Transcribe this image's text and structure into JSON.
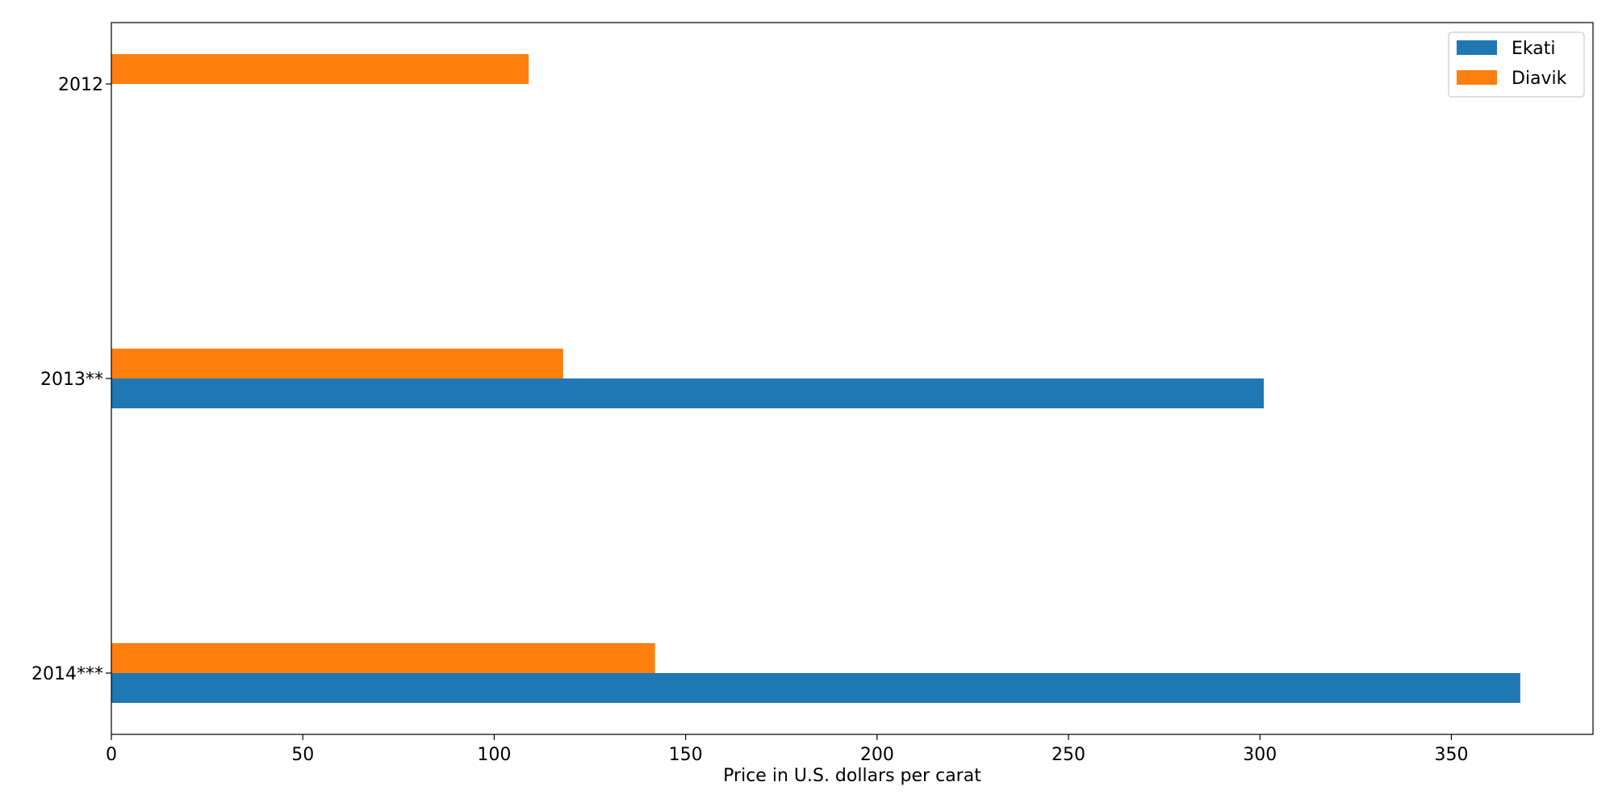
{
  "chart_data": {
    "type": "bar",
    "orientation": "horizontal",
    "title": "",
    "xlabel": "Price in U.S. dollars per carat",
    "ylabel": "",
    "categories": [
      "2012",
      "2013**",
      "2014***"
    ],
    "series": [
      {
        "name": "Ekati",
        "color": "#1f77b4",
        "values": [
          null,
          301,
          368
        ]
      },
      {
        "name": "Diavik",
        "color": "#ff7f0e",
        "values": [
          109,
          118,
          142
        ]
      }
    ],
    "xlim": [
      0,
      387
    ],
    "xticks": [
      0,
      50,
      100,
      150,
      200,
      250,
      300,
      350
    ],
    "grid": false,
    "legend": {
      "position": "top-right",
      "entries": [
        "Ekati",
        "Diavik"
      ]
    }
  }
}
